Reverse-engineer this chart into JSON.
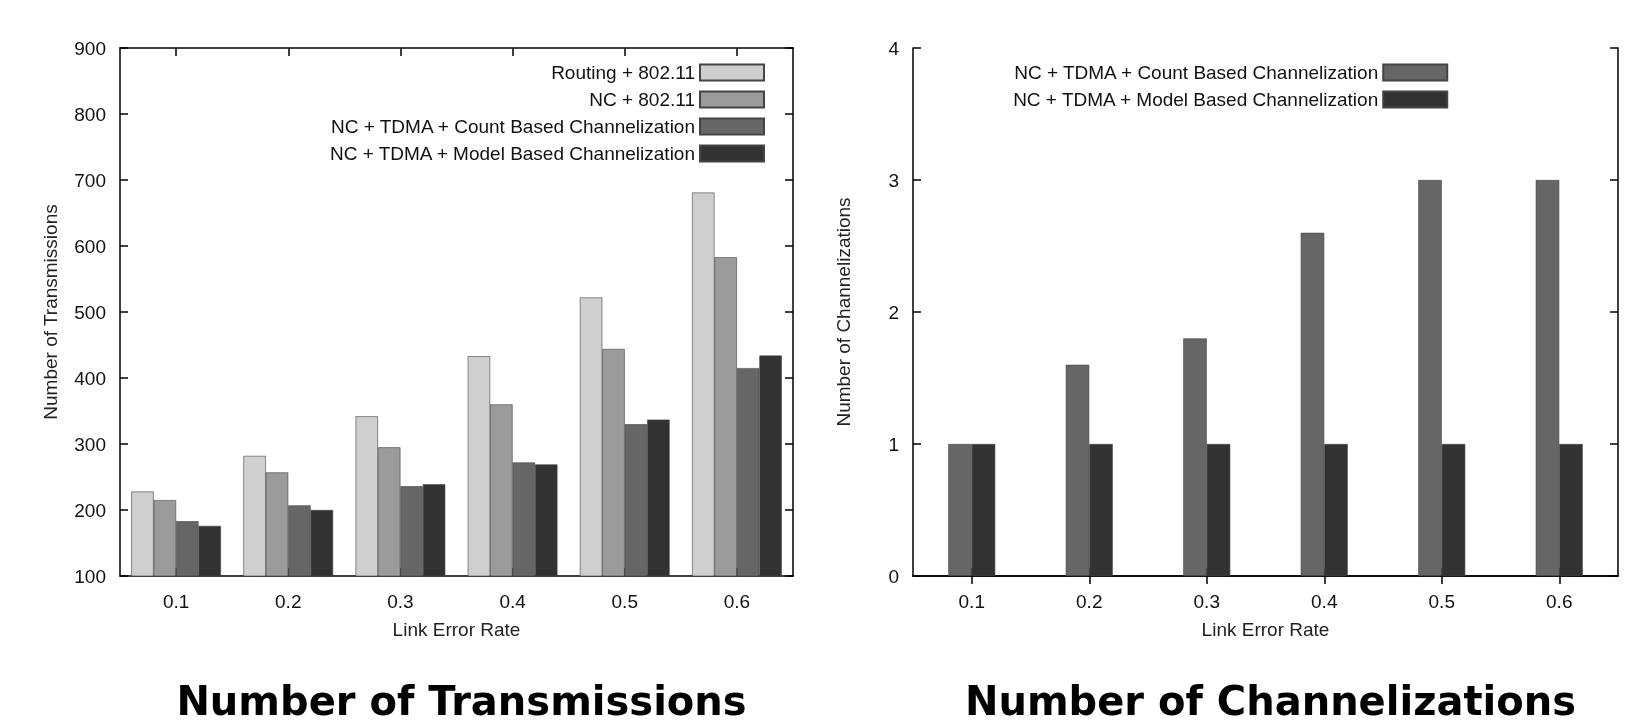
{
  "chart_data": [
    {
      "type": "bar",
      "title": "Number of Transmissions",
      "xlabel": "Link Error Rate",
      "ylabel": "Number of Transmissions",
      "categories": [
        "0.1",
        "0.2",
        "0.3",
        "0.4",
        "0.5",
        "0.6"
      ],
      "ylim": [
        100,
        900
      ],
      "yticks": [
        100,
        200,
        300,
        400,
        500,
        600,
        700,
        800,
        900
      ],
      "grid": false,
      "legend": "top right",
      "series": [
        {
          "name": "Routing + 802.11",
          "color": "#cfcfcf",
          "values": [
            228,
            282,
            342,
            433,
            522,
            681
          ]
        },
        {
          "name": "NC + 802.11",
          "color": "#9b9b9b",
          "values": [
            215,
            257,
            295,
            360,
            444,
            583
          ]
        },
        {
          "name": "NC + TDMA + Count Based Channelization",
          "color": "#666666",
          "values": [
            183,
            207,
            236,
            272,
            330,
            415
          ]
        },
        {
          "name": "NC + TDMA + Model Based Channelization",
          "color": "#313333",
          "values": [
            176,
            200,
            239,
            269,
            337,
            434
          ]
        }
      ]
    },
    {
      "type": "bar",
      "title": "Number of Channelizations",
      "xlabel": "Link Error Rate",
      "ylabel": "Number of Channelizations",
      "categories": [
        "0.1",
        "0.2",
        "0.3",
        "0.4",
        "0.5",
        "0.6"
      ],
      "ylim": [
        0,
        4
      ],
      "yticks": [
        0,
        1,
        2,
        3,
        4
      ],
      "grid": false,
      "legend": "top",
      "series": [
        {
          "name": "NC + TDMA + Count Based Channelization",
          "color": "#666666",
          "values": [
            1,
            1.6,
            1.8,
            2.6,
            3,
            3
          ]
        },
        {
          "name": "NC + TDMA + Model Based Channelization",
          "color": "#313333",
          "values": [
            1,
            1,
            1,
            1,
            1,
            1
          ]
        }
      ]
    }
  ]
}
